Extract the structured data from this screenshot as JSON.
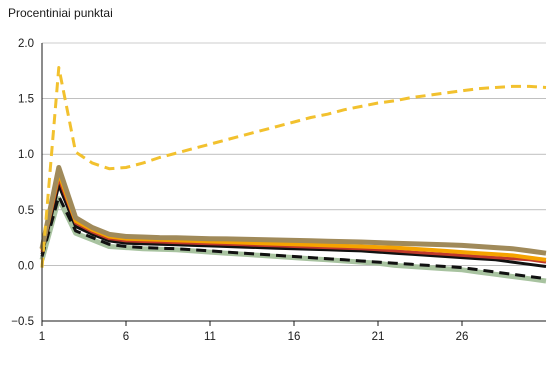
{
  "chart_data": {
    "type": "line",
    "ylabel": "Procentiniai punktai",
    "xlabel": "",
    "xlim": [
      1,
      31
    ],
    "ylim": [
      -0.5,
      2.0
    ],
    "x_ticks": [
      1,
      6,
      11,
      16,
      21,
      26
    ],
    "y_ticks": [
      -0.5,
      0.0,
      0.5,
      1.0,
      1.5,
      2.0
    ],
    "y_tick_labels": [
      "−0.5",
      "0.0",
      "0.5",
      "1.0",
      "1.5",
      "2.0"
    ],
    "grid": "horizontal",
    "legend": "none",
    "x": [
      1,
      2,
      3,
      4,
      5,
      6,
      7,
      8,
      9,
      10,
      11,
      12,
      13,
      14,
      15,
      16,
      17,
      18,
      19,
      20,
      21,
      22,
      23,
      24,
      25,
      26,
      27,
      28,
      29,
      30,
      31
    ],
    "series": [
      {
        "color": "#a8c3a0",
        "dash": "solid",
        "width": 5,
        "values": [
          0.05,
          0.6,
          0.29,
          0.23,
          0.17,
          0.16,
          0.15,
          0.145,
          0.14,
          0.13,
          0.12,
          0.11,
          0.1,
          0.09,
          0.08,
          0.07,
          0.06,
          0.05,
          0.04,
          0.03,
          0.02,
          0.0,
          -0.01,
          -0.02,
          -0.03,
          -0.04,
          -0.06,
          -0.08,
          -0.1,
          -0.12,
          -0.14
        ]
      },
      {
        "color": "#111111",
        "dash": "dashed",
        "width": 3,
        "values": [
          0.08,
          0.62,
          0.31,
          0.25,
          0.19,
          0.17,
          0.16,
          0.155,
          0.15,
          0.14,
          0.13,
          0.12,
          0.11,
          0.1,
          0.09,
          0.08,
          0.07,
          0.06,
          0.05,
          0.04,
          0.03,
          0.02,
          0.01,
          0.0,
          -0.01,
          -0.02,
          -0.04,
          -0.06,
          -0.08,
          -0.1,
          -0.12
        ]
      },
      {
        "color": "#111111",
        "dash": "solid",
        "width": 3,
        "values": [
          0.1,
          0.72,
          0.35,
          0.28,
          0.22,
          0.2,
          0.195,
          0.19,
          0.185,
          0.18,
          0.175,
          0.17,
          0.165,
          0.16,
          0.155,
          0.15,
          0.145,
          0.14,
          0.135,
          0.13,
          0.12,
          0.11,
          0.1,
          0.09,
          0.08,
          0.07,
          0.06,
          0.05,
          0.03,
          0.01,
          -0.01
        ]
      },
      {
        "color": "#c0392b",
        "dash": "solid",
        "width": 3,
        "values": [
          0.12,
          0.78,
          0.38,
          0.3,
          0.24,
          0.22,
          0.215,
          0.21,
          0.205,
          0.2,
          0.195,
          0.19,
          0.185,
          0.18,
          0.175,
          0.17,
          0.165,
          0.16,
          0.155,
          0.15,
          0.14,
          0.13,
          0.12,
          0.11,
          0.1,
          0.09,
          0.08,
          0.07,
          0.06,
          0.05,
          0.03
        ]
      },
      {
        "color": "#f5a300",
        "dash": "solid",
        "width": 4,
        "values": [
          0.14,
          0.83,
          0.4,
          0.32,
          0.26,
          0.24,
          0.235,
          0.23,
          0.225,
          0.22,
          0.215,
          0.21,
          0.205,
          0.2,
          0.195,
          0.19,
          0.185,
          0.18,
          0.175,
          0.17,
          0.165,
          0.16,
          0.15,
          0.14,
          0.13,
          0.12,
          0.11,
          0.1,
          0.09,
          0.07,
          0.05
        ]
      },
      {
        "color": "#a08a5a",
        "dash": "solid",
        "width": 5,
        "values": [
          0.15,
          0.88,
          0.43,
          0.34,
          0.28,
          0.26,
          0.255,
          0.25,
          0.248,
          0.245,
          0.24,
          0.238,
          0.235,
          0.232,
          0.228,
          0.225,
          0.222,
          0.218,
          0.214,
          0.21,
          0.205,
          0.2,
          0.195,
          0.19,
          0.185,
          0.18,
          0.17,
          0.16,
          0.15,
          0.13,
          0.11
        ]
      },
      {
        "color": "#f2c12e",
        "dash": "dashed",
        "width": 3,
        "values": [
          -0.02,
          1.78,
          1.02,
          0.92,
          0.87,
          0.88,
          0.92,
          0.97,
          1.01,
          1.05,
          1.09,
          1.13,
          1.17,
          1.21,
          1.25,
          1.29,
          1.33,
          1.36,
          1.4,
          1.43,
          1.46,
          1.48,
          1.51,
          1.53,
          1.55,
          1.57,
          1.59,
          1.6,
          1.61,
          1.61,
          1.6
        ]
      }
    ]
  }
}
